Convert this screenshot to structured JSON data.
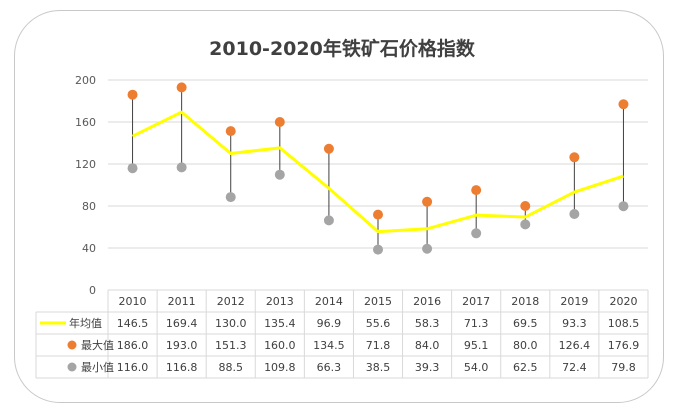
{
  "chart_data": {
    "type": "line",
    "title": "2010-2020年铁矿石价格指数",
    "categories": [
      "2010",
      "2011",
      "2012",
      "2013",
      "2014",
      "2015",
      "2016",
      "2017",
      "2018",
      "2019",
      "2020"
    ],
    "ylim": [
      0,
      200
    ],
    "yticks": [
      0,
      40,
      80,
      120,
      160,
      200
    ],
    "grid": true,
    "legend": "data-table-bottom",
    "series": [
      {
        "name": "年均值",
        "color": "#FFFF00",
        "style": "line",
        "values": [
          146.5,
          169.4,
          130.0,
          135.4,
          96.9,
          55.6,
          58.3,
          71.3,
          69.5,
          93.3,
          108.5
        ]
      },
      {
        "name": "最大值",
        "color": "#ED7D31",
        "style": "marker",
        "values": [
          186.0,
          193.0,
          151.3,
          160.0,
          134.5,
          71.8,
          84.0,
          95.1,
          80.0,
          126.4,
          176.9
        ]
      },
      {
        "name": "最小值",
        "color": "#A5A5A5",
        "style": "marker",
        "values": [
          116.0,
          116.8,
          88.5,
          109.8,
          66.3,
          38.5,
          39.3,
          54.0,
          62.5,
          72.4,
          79.8
        ]
      }
    ],
    "high_low_lines": true
  }
}
